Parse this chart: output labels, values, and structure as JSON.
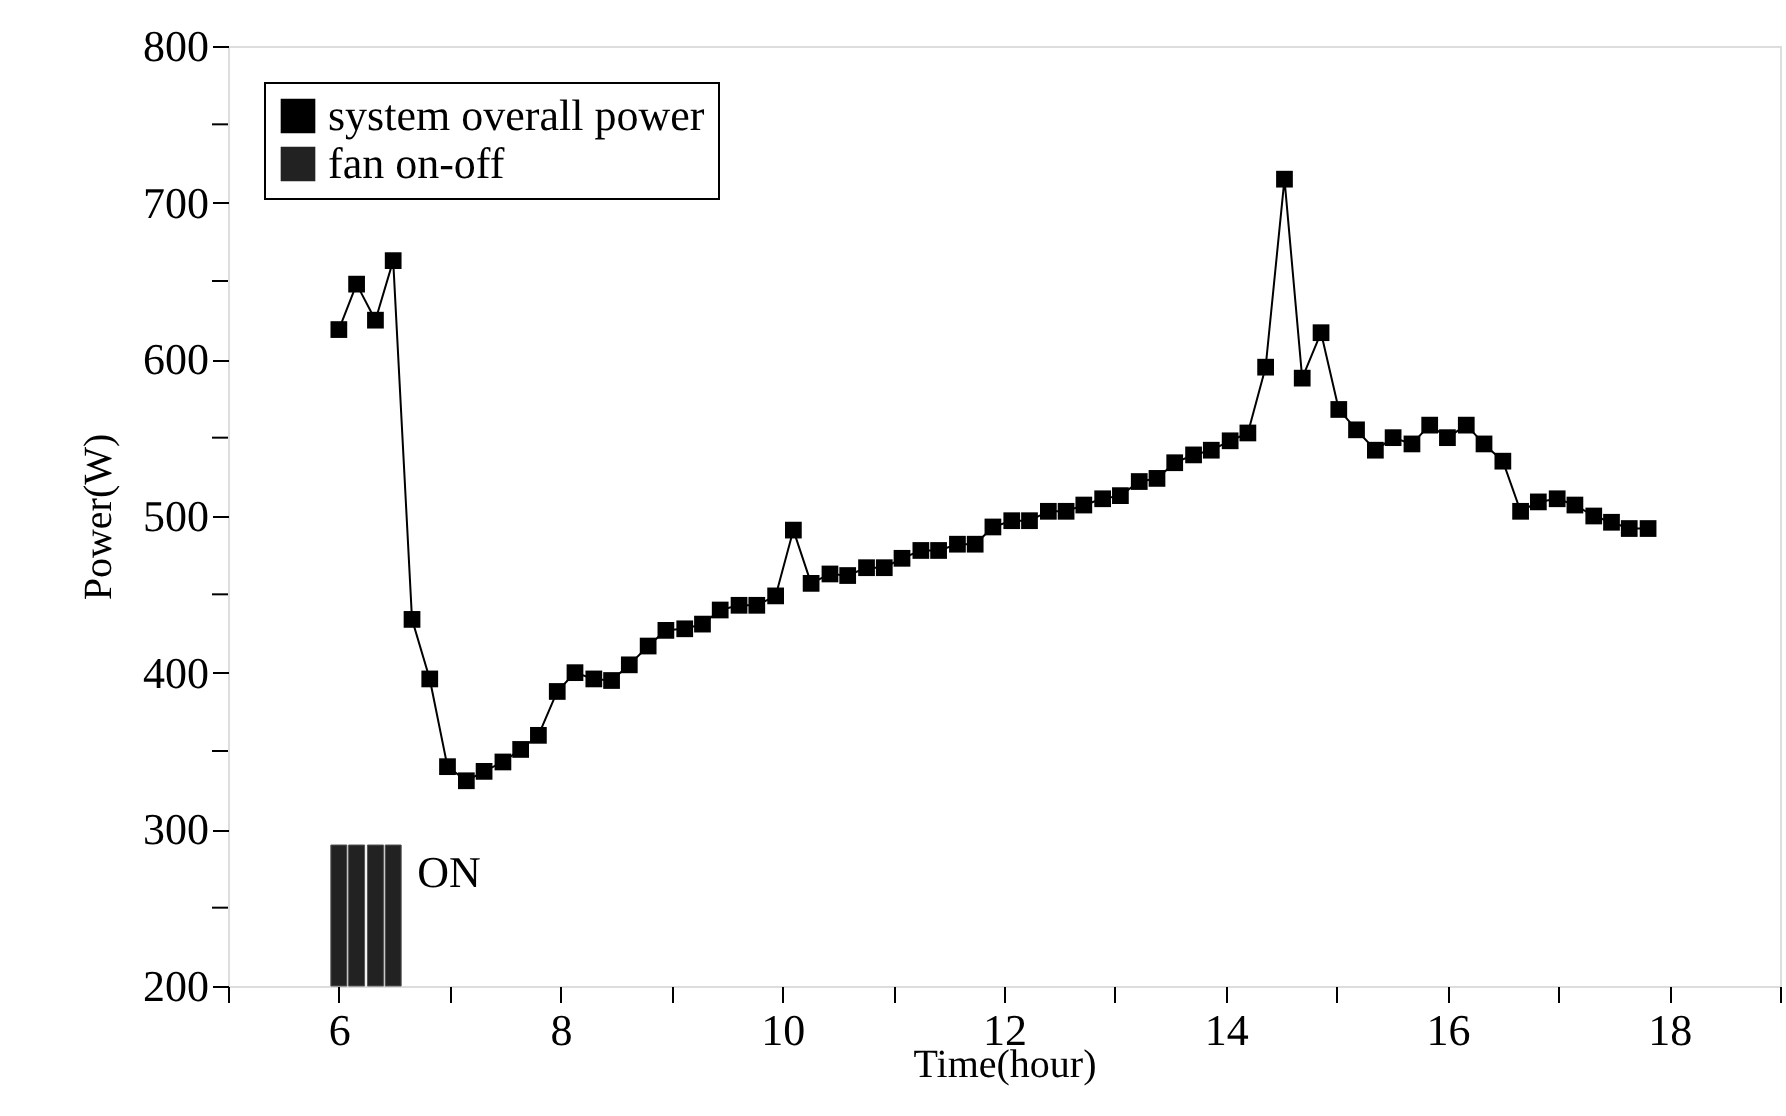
{
  "chart_data": {
    "type": "line",
    "xlabel": "Time(hour)",
    "ylabel": "Power(W)",
    "x": [
      6.0,
      6.16,
      6.33,
      6.49,
      6.66,
      6.82,
      6.98,
      7.15,
      7.31,
      7.48,
      7.64,
      7.8,
      7.97,
      8.13,
      8.3,
      8.46,
      8.62,
      8.79,
      8.95,
      9.12,
      9.28,
      9.44,
      9.61,
      9.77,
      9.94,
      10.1,
      10.26,
      10.43,
      10.59,
      10.76,
      10.92,
      11.08,
      11.25,
      11.41,
      11.58,
      11.74,
      11.9,
      12.07,
      12.23,
      12.4,
      12.56,
      12.72,
      12.89,
      13.05,
      13.22,
      13.38,
      13.54,
      13.71,
      13.87,
      14.04,
      14.2,
      14.36,
      14.53,
      14.69,
      14.86,
      15.02,
      15.18,
      15.35,
      15.51,
      15.68,
      15.84,
      16.0,
      16.17,
      16.33,
      16.5,
      16.66,
      16.82,
      16.99,
      17.15,
      17.32,
      17.48,
      17.64,
      17.81
    ],
    "series": [
      {
        "name": "system overall power",
        "color": "#000000",
        "marker": "square",
        "line_style": "solid",
        "values": [
          619,
          648,
          625,
          663,
          434,
          396,
          340,
          331,
          337,
          343,
          351,
          360,
          388,
          400,
          396,
          395,
          405,
          417,
          427,
          428,
          431,
          440,
          443,
          443,
          449,
          491,
          457,
          463,
          462,
          467,
          467,
          473,
          478,
          478,
          482,
          482,
          493,
          497,
          497,
          503,
          503,
          507,
          511,
          513,
          522,
          524,
          534,
          539,
          542,
          548,
          553,
          595,
          715,
          588,
          617,
          568,
          555,
          542,
          550,
          546,
          558,
          550,
          558,
          546,
          535,
          503,
          509,
          511,
          507,
          500,
          496,
          492,
          492
        ]
      },
      {
        "name": "fan on-off",
        "type": "bar",
        "color": "#222222",
        "x": [
          6.0,
          6.16,
          6.33,
          6.49
        ],
        "values": [
          290,
          290,
          290,
          290
        ]
      }
    ],
    "annotations": [
      "ON"
    ],
    "xlim": [
      5,
      19
    ],
    "xticks": [
      {
        "value": 5,
        "label": null
      },
      6,
      {
        "value": 7,
        "label": null
      },
      8,
      {
        "value": 9,
        "label": null
      },
      10,
      {
        "value": 11,
        "label": null
      },
      12,
      {
        "value": 13,
        "label": null
      },
      14,
      {
        "value": 15,
        "label": null
      },
      16,
      {
        "value": 17,
        "label": null
      },
      18,
      {
        "value": 19,
        "label": null
      }
    ],
    "ylim": [
      200,
      800
    ],
    "yticks": [
      200,
      {
        "value": 250,
        "label": null
      },
      300,
      {
        "value": 350,
        "label": null
      },
      400,
      {
        "value": 450,
        "label": null
      },
      500,
      {
        "value": 550,
        "label": null
      },
      600,
      {
        "value": 650,
        "label": null
      },
      700,
      {
        "value": 750,
        "label": null
      },
      800
    ],
    "grid": false,
    "legend": "top left"
  }
}
